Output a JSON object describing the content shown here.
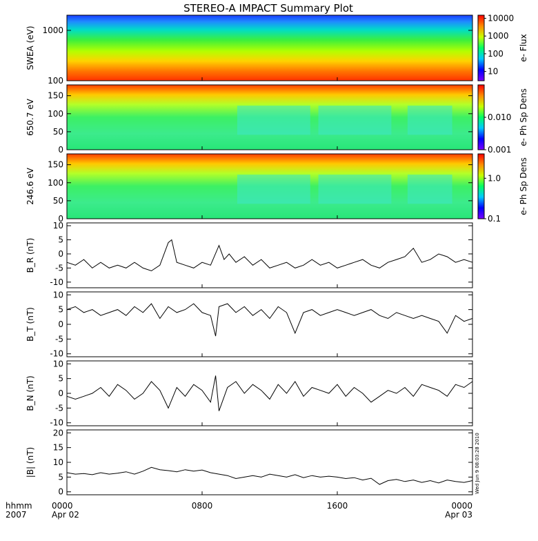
{
  "title": "STEREO-A IMPACT Summary Plot",
  "stamp": "Wed Jun  9 08:03:28 2010",
  "time_axis": {
    "label_line1": "hhmm",
    "label_line2": "2007",
    "ticks": [
      {
        "hours": 0,
        "l1": "0000",
        "l2": "Apr 02"
      },
      {
        "hours": 8,
        "l1": "0800",
        "l2": ""
      },
      {
        "hours": 16,
        "l1": "1600",
        "l2": ""
      },
      {
        "hours": 24,
        "l1": "0000",
        "l2": "Apr 03"
      }
    ]
  },
  "colors": {
    "plot_line": "#000000",
    "colormap": [
      "#7a00ff",
      "#0000ff",
      "#00c8ff",
      "#00ff64",
      "#c8ff00",
      "#ff8c00",
      "#ff0000"
    ]
  },
  "chart_data": [
    {
      "type": "heatmap",
      "ylabel": "SWEA (eV)",
      "scale": "log",
      "ylim": [
        100,
        2000
      ],
      "y_ticks": [
        {
          "v": 100,
          "label": "100"
        },
        {
          "v": 1000,
          "label": "1000"
        }
      ],
      "colorbar": {
        "label": "e- Flux",
        "scale": "log",
        "range": [
          3,
          15000
        ],
        "ticks": [
          {
            "v": 10000,
            "label": "10000"
          },
          {
            "v": 1000,
            "label": "1000"
          },
          {
            "v": 100,
            "label": "100"
          },
          {
            "v": 10,
            "label": "10"
          }
        ]
      }
    },
    {
      "type": "heatmap",
      "ylabel": "650.7 eV",
      "ylim": [
        0,
        180
      ],
      "y_ticks": [
        {
          "v": 0,
          "label": "0"
        },
        {
          "v": 50,
          "label": "50"
        },
        {
          "v": 100,
          "label": "100"
        },
        {
          "v": 150,
          "label": "150"
        }
      ],
      "colorbar": {
        "label": "e- Ph Sp Dens",
        "scale": "log",
        "range": [
          0.001,
          0.1
        ],
        "ticks": [
          {
            "v": 0.01,
            "label": "0.010"
          },
          {
            "v": 0.001,
            "label": "0.001"
          }
        ]
      }
    },
    {
      "type": "heatmap",
      "ylabel": "246.6 eV",
      "ylim": [
        0,
        180
      ],
      "y_ticks": [
        {
          "v": 0,
          "label": "0"
        },
        {
          "v": 50,
          "label": "50"
        },
        {
          "v": 100,
          "label": "100"
        },
        {
          "v": 150,
          "label": "150"
        }
      ],
      "colorbar": {
        "label": "e- Ph Sp Dens",
        "scale": "log",
        "range": [
          0.1,
          4
        ],
        "ticks": [
          {
            "v": 1,
            "label": "1.0"
          },
          {
            "v": 0.1,
            "label": "0.1"
          }
        ]
      }
    },
    {
      "type": "line",
      "ylabel": "B_R (nT)",
      "ylim": [
        -12,
        11
      ],
      "y_ticks": [
        {
          "v": 10,
          "label": "10"
        },
        {
          "v": 5,
          "label": "5"
        },
        {
          "v": 0,
          "label": "0"
        },
        {
          "v": -5,
          "label": "-5"
        },
        {
          "v": -10,
          "label": "-10"
        }
      ],
      "series": [
        {
          "x": [
            0,
            0.5,
            1,
            1.5,
            2,
            2.5,
            3,
            3.5,
            4,
            4.5,
            5,
            5.5,
            6,
            6.2,
            6.5,
            7,
            7.5,
            8,
            8.5,
            9,
            9.3,
            9.6,
            10,
            10.5,
            11,
            11.5,
            12,
            12.5,
            13,
            13.5,
            14,
            14.5,
            15,
            15.5,
            16,
            16.5,
            17,
            17.5,
            18,
            18.5,
            19,
            19.5,
            20,
            20.5,
            21,
            21.5,
            22,
            22.5,
            23,
            23.5,
            24
          ],
          "y": [
            -3,
            -4,
            -2,
            -5,
            -3,
            -5,
            -4,
            -5,
            -3,
            -5,
            -6,
            -4,
            4,
            5,
            -3,
            -4,
            -5,
            -3,
            -4,
            3,
            -2,
            0,
            -3,
            -1,
            -4,
            -2,
            -5,
            -4,
            -3,
            -5,
            -4,
            -2,
            -4,
            -3,
            -5,
            -4,
            -3,
            -2,
            -4,
            -5,
            -3,
            -2,
            -1,
            2,
            -3,
            -2,
            0,
            -1,
            -3,
            -2,
            -3
          ]
        }
      ]
    },
    {
      "type": "line",
      "ylabel": "B_T (nT)",
      "ylim": [
        -11,
        11
      ],
      "y_ticks": [
        {
          "v": 10,
          "label": "10"
        },
        {
          "v": 5,
          "label": "5"
        },
        {
          "v": 0,
          "label": "0"
        },
        {
          "v": -5,
          "label": "-5"
        },
        {
          "v": -10,
          "label": "-10"
        }
      ],
      "series": [
        {
          "x": [
            0,
            0.5,
            1,
            1.5,
            2,
            2.5,
            3,
            3.5,
            4,
            4.5,
            5,
            5.5,
            6,
            6.5,
            7,
            7.5,
            8,
            8.5,
            8.8,
            9,
            9.5,
            10,
            10.5,
            11,
            11.5,
            12,
            12.5,
            13,
            13.5,
            14,
            14.5,
            15,
            15.5,
            16,
            16.5,
            17,
            17.5,
            18,
            18.5,
            19,
            19.5,
            20,
            20.5,
            21,
            21.5,
            22,
            22.5,
            23,
            23.5,
            24
          ],
          "y": [
            5,
            6,
            4,
            5,
            3,
            4,
            5,
            3,
            6,
            4,
            7,
            2,
            6,
            4,
            5,
            7,
            4,
            3,
            -4,
            6,
            7,
            4,
            6,
            3,
            5,
            2,
            6,
            4,
            -3,
            4,
            5,
            3,
            4,
            5,
            4,
            3,
            4,
            5,
            3,
            2,
            4,
            3,
            2,
            3,
            2,
            1,
            -3,
            3,
            1,
            2
          ]
        }
      ]
    },
    {
      "type": "line",
      "ylabel": "B_N (nT)",
      "ylim": [
        -11,
        11
      ],
      "y_ticks": [
        {
          "v": 10,
          "label": "10"
        },
        {
          "v": 5,
          "label": "5"
        },
        {
          "v": 0,
          "label": "0"
        },
        {
          "v": -5,
          "label": "-5"
        },
        {
          "v": -10,
          "label": "-10"
        }
      ],
      "series": [
        {
          "x": [
            0,
            0.5,
            1,
            1.5,
            2,
            2.5,
            3,
            3.5,
            4,
            4.5,
            5,
            5.5,
            6,
            6.5,
            7,
            7.5,
            8,
            8.5,
            8.8,
            9,
            9.5,
            10,
            10.5,
            11,
            11.5,
            12,
            12.5,
            13,
            13.5,
            14,
            14.5,
            15,
            15.5,
            16,
            16.5,
            17,
            17.5,
            18,
            18.5,
            19,
            19.5,
            20,
            20.5,
            21,
            21.5,
            22,
            22.5,
            23,
            23.5,
            24
          ],
          "y": [
            -1,
            -2,
            -1,
            0,
            2,
            -1,
            3,
            1,
            -2,
            0,
            4,
            1,
            -5,
            2,
            -1,
            3,
            1,
            -3,
            6,
            -6,
            2,
            4,
            0,
            3,
            1,
            -2,
            3,
            0,
            4,
            -1,
            2,
            1,
            0,
            3,
            -1,
            2,
            0,
            -3,
            -1,
            1,
            0,
            2,
            -1,
            3,
            2,
            1,
            -1,
            3,
            2,
            4
          ]
        }
      ]
    },
    {
      "type": "line",
      "ylabel": "|B| (nT)",
      "ylim": [
        -1,
        21
      ],
      "y_ticks": [
        {
          "v": 20,
          "label": "20"
        },
        {
          "v": 15,
          "label": "15"
        },
        {
          "v": 10,
          "label": "10"
        },
        {
          "v": 5,
          "label": "5"
        },
        {
          "v": 0,
          "label": "0"
        }
      ],
      "series": [
        {
          "x": [
            0,
            0.5,
            1,
            1.5,
            2,
            2.5,
            3,
            3.5,
            4,
            4.5,
            5,
            5.5,
            6,
            6.5,
            7,
            7.5,
            8,
            8.5,
            9,
            9.5,
            10,
            10.5,
            11,
            11.5,
            12,
            12.5,
            13,
            13.5,
            14,
            14.5,
            15,
            15.5,
            16,
            16.5,
            17,
            17.5,
            18,
            18.5,
            19,
            19.5,
            20,
            20.5,
            21,
            21.5,
            22,
            22.5,
            23,
            23.5,
            24
          ],
          "y": [
            6.5,
            6,
            6.2,
            5.8,
            6.5,
            6,
            6.3,
            6.8,
            6,
            7,
            8.3,
            7.5,
            7.2,
            6.8,
            7.5,
            7,
            7.4,
            6.5,
            6,
            5.5,
            4.5,
            5,
            5.5,
            5,
            6,
            5.5,
            5,
            5.8,
            4.8,
            5.5,
            5,
            5.3,
            5,
            4.5,
            4.8,
            4,
            4.6,
            2.5,
            3.8,
            4.2,
            3.5,
            4,
            3.2,
            3.8,
            3,
            4,
            3.5,
            3.2,
            3.8
          ]
        }
      ]
    }
  ]
}
